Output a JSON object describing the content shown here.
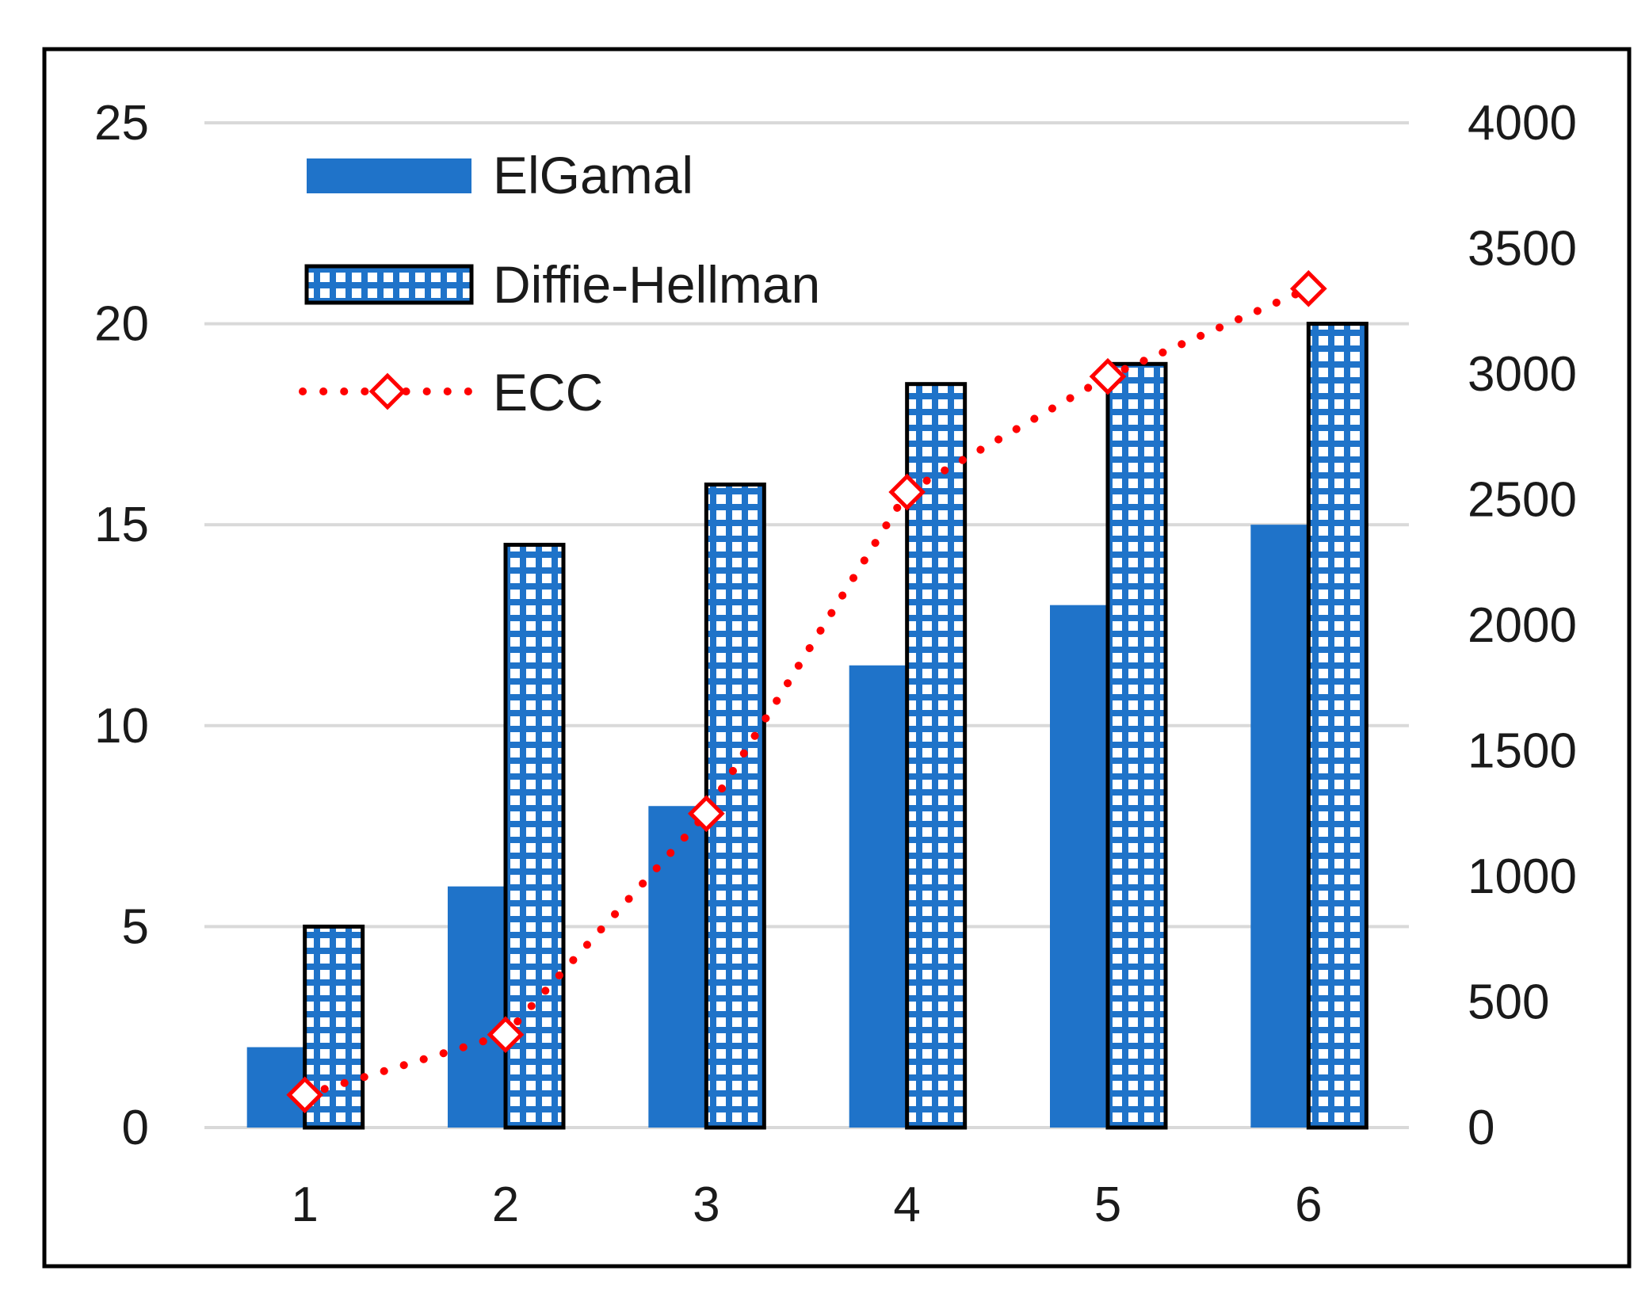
{
  "chart_data": {
    "type": "bar",
    "title": "",
    "xlabel": "",
    "ylabel": "",
    "y2label": "",
    "categories": [
      "1",
      "2",
      "3",
      "4",
      "5",
      "6"
    ],
    "series": [
      {
        "name": "ElGamal",
        "type": "bar",
        "axis": "left",
        "color": "#1f73c9",
        "values": [
          2,
          6,
          8,
          11.5,
          13,
          15
        ]
      },
      {
        "name": "Diffie-Hellman",
        "type": "bar",
        "axis": "left",
        "color": "#1f73c9",
        "pattern": "grid",
        "values": [
          5,
          14.5,
          16,
          18.5,
          19,
          20
        ]
      },
      {
        "name": "ECC",
        "type": "line",
        "axis": "right",
        "color": "#ff0000",
        "marker": "diamond",
        "line_style": "dotted",
        "values": [
          130,
          370,
          1250,
          2530,
          2990,
          3340
        ]
      }
    ],
    "ylim": [
      0,
      25
    ],
    "y_ticks": [
      "0",
      "5",
      "10",
      "15",
      "20",
      "25"
    ],
    "y2lim": [
      0,
      4000
    ],
    "y2_ticks": [
      "0",
      "500",
      "1000",
      "1500",
      "2000",
      "2500",
      "3000",
      "3500",
      "4000"
    ],
    "grid": true,
    "legend_position": "top-left"
  }
}
